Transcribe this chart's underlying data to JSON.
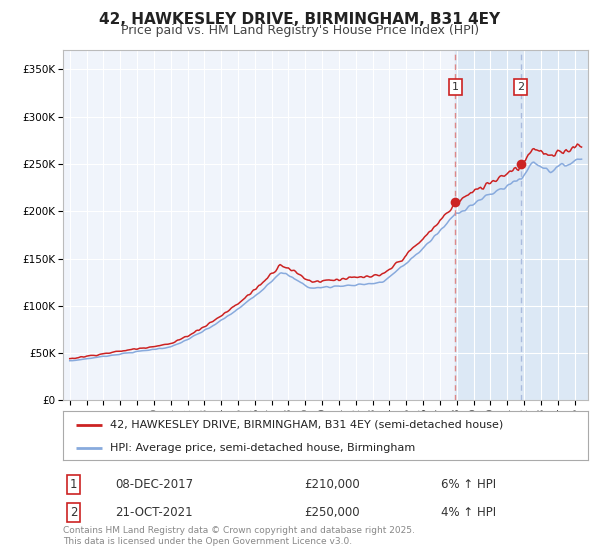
{
  "title": "42, HAWKESLEY DRIVE, BIRMINGHAM, B31 4EY",
  "subtitle": "Price paid vs. HM Land Registry's House Price Index (HPI)",
  "legend_label_red": "42, HAWKESLEY DRIVE, BIRMINGHAM, B31 4EY (semi-detached house)",
  "legend_label_blue": "HPI: Average price, semi-detached house, Birmingham",
  "annotation1_date": "08-DEC-2017",
  "annotation1_price": "£210,000",
  "annotation1_hpi": "6% ↑ HPI",
  "annotation2_date": "21-OCT-2021",
  "annotation2_price": "£250,000",
  "annotation2_hpi": "4% ↑ HPI",
  "footer": "Contains HM Land Registry data © Crown copyright and database right 2025.\nThis data is licensed under the Open Government Licence v3.0.",
  "background_color": "#ffffff",
  "plot_bg_color": "#f0f4fb",
  "grid_color": "#ffffff",
  "red_color": "#cc2222",
  "blue_color": "#88aadd",
  "shade_color": "#dce8f5",
  "vline1_color": "#dd8888",
  "vline2_color": "#aabbdd",
  "ylim": [
    0,
    370000
  ],
  "yticks": [
    0,
    50000,
    100000,
    150000,
    200000,
    250000,
    300000,
    350000
  ],
  "ylabels": [
    "£0",
    "£50K",
    "£100K",
    "£150K",
    "£200K",
    "£250K",
    "£300K",
    "£350K"
  ],
  "purchase1_year": 2017.92,
  "purchase2_year": 2021.8,
  "purchase1_price": 210000,
  "purchase2_price": 250000,
  "title_fontsize": 11,
  "subtitle_fontsize": 9,
  "tick_fontsize": 7.5,
  "legend_fontsize": 8,
  "ann_fontsize": 8.5
}
